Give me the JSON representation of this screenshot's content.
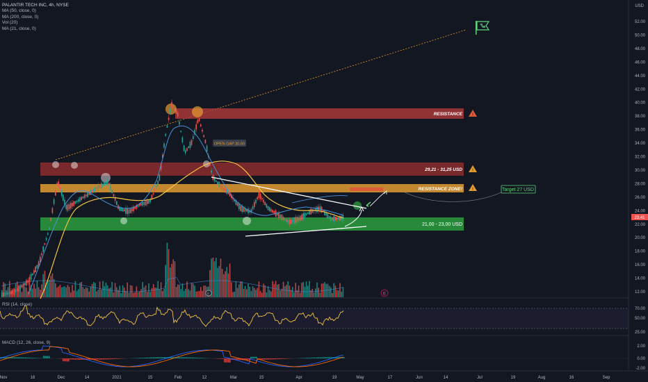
{
  "header": {
    "symbol_line": "PALANTIR TECH INC, 4h, NYSE",
    "indicators": [
      "MA (50, close, 0)",
      "MA (200, close, 0)",
      "Vol (20)",
      "MA (21, close, 0)"
    ]
  },
  "price_axis": {
    "currency": "USD",
    "ticks": [
      "52.00",
      "50.00",
      "48.00",
      "46.00",
      "44.00",
      "42.00",
      "40.00",
      "38.00",
      "36.00",
      "34.00",
      "32.00",
      "30.00",
      "28.00",
      "26.00",
      "24.00",
      "22.00",
      "20.00",
      "18.00",
      "16.00",
      "14.00",
      "12.00"
    ],
    "last_price": "23.41"
  },
  "time_axis": {
    "labels": [
      "Nov",
      "16",
      "Dec",
      "14",
      "2021",
      "15",
      "Feb",
      "12",
      "Mar",
      "15",
      "Apr",
      "19",
      "May",
      "17",
      "Jun",
      "14",
      "Jul",
      "19",
      "Aug",
      "16",
      "Sep"
    ]
  },
  "annotations": {
    "resistance": "RESISTANCE",
    "range_upper": "29,21 - 31,25 USD",
    "resistance_zone": "RESISTANCE ZONE!",
    "range_support": "21,00 - 23,00 USD",
    "target": "Target 27 USD",
    "open_gap": "OPEN GAP 30.60",
    "earnings_marker": "E"
  },
  "rsi": {
    "label": "RSI (14, close)",
    "ticks": [
      "70.00",
      "50.00",
      "25.00"
    ]
  },
  "macd": {
    "label": "MACD (12, 26, close, 9)",
    "ticks": [
      "2.00",
      "0.00",
      "-2.00"
    ]
  },
  "colors": {
    "background": "#131722",
    "up": "#26a69a",
    "down": "#ef5350",
    "ma_yellow": "#f5c542",
    "ma_blue": "#4a90d9",
    "resistance_red": "#b23b3b",
    "resistance_orange": "#e39b32",
    "support_green": "#2e9e3e",
    "target_green": "#5fd47a"
  }
}
